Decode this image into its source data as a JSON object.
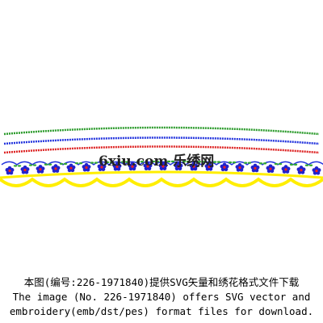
{
  "watermark": "6xiu.com 乐绣网",
  "caption": {
    "line1": "本图(编号:226-1971840)提供SVG矢量和绣花格式文件下载",
    "line2": "The image (No. 226-1971840) offers SVG vector and",
    "line3": "embroidery(emb/dst/pes) format files for download."
  }
}
